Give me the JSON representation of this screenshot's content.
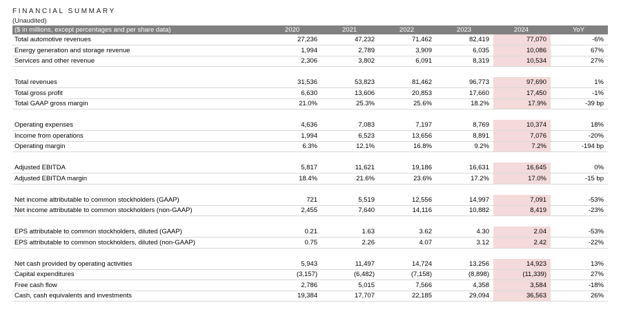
{
  "header": {
    "title": "FINANCIAL SUMMARY",
    "subtitle": "(Unaudited)"
  },
  "columns": [
    "($ in millions, except percentages and per share data)",
    "2020",
    "2021",
    "2022",
    "2023",
    "2024",
    "YoY"
  ],
  "groups": [
    {
      "rows": [
        {
          "label": "Total automotive revenues",
          "values": [
            "27,236",
            "47,232",
            "71,462",
            "82,419",
            "77,070",
            "-6%"
          ]
        },
        {
          "label": "Energy generation and storage revenue",
          "values": [
            "1,994",
            "2,789",
            "3,909",
            "6,035",
            "10,086",
            "67%"
          ]
        },
        {
          "label": "Services and other revenue",
          "values": [
            "2,306",
            "3,802",
            "6,091",
            "8,319",
            "10,534",
            "27%"
          ]
        }
      ]
    },
    {
      "rows": [
        {
          "label": "Total revenues",
          "values": [
            "31,536",
            "53,823",
            "81,462",
            "96,773",
            "97,690",
            "1%"
          ]
        },
        {
          "label": "Total gross profit",
          "values": [
            "6,630",
            "13,606",
            "20,853",
            "17,660",
            "17,450",
            "-1%"
          ]
        },
        {
          "label": "Total GAAP gross margin",
          "values": [
            "21.0%",
            "25.3%",
            "25.6%",
            "18.2%",
            "17.9%",
            "-39 bp"
          ]
        }
      ]
    },
    {
      "rows": [
        {
          "label": "Operating expenses",
          "values": [
            "4,636",
            "7,083",
            "7,197",
            "8,769",
            "10,374",
            "18%"
          ]
        },
        {
          "label": "Income from operations",
          "values": [
            "1,994",
            "6,523",
            "13,656",
            "8,891",
            "7,076",
            "-20%"
          ]
        },
        {
          "label": "Operating margin",
          "values": [
            "6.3%",
            "12.1%",
            "16.8%",
            "9.2%",
            "7.2%",
            "-194 bp"
          ]
        }
      ]
    },
    {
      "rows": [
        {
          "label": "Adjusted EBITDA",
          "values": [
            "5,817",
            "11,621",
            "19,186",
            "16,631",
            "16,645",
            "0%"
          ]
        },
        {
          "label": "Adjusted EBITDA margin",
          "values": [
            "18.4%",
            "21.6%",
            "23.6%",
            "17.2%",
            "17.0%",
            "-15 bp"
          ]
        }
      ]
    },
    {
      "rows": [
        {
          "label": "Net income attributable to common stockholders (GAAP)",
          "values": [
            "721",
            "5,519",
            "12,556",
            "14,997",
            "7,091",
            "-53%"
          ]
        },
        {
          "label": "Net income attributable to common stockholders (non-GAAP)",
          "values": [
            "2,455",
            "7,640",
            "14,116",
            "10,882",
            "8,419",
            "-23%"
          ]
        }
      ]
    },
    {
      "rows": [
        {
          "label": "EPS attributable to common stockholders, diluted (GAAP)",
          "values": [
            "0.21",
            "1.63",
            "3.62",
            "4.30",
            "2.04",
            "-53%"
          ]
        },
        {
          "label": "EPS attributable to common stockholders, diluted (non-GAAP)",
          "values": [
            "0.75",
            "2.26",
            "4.07",
            "3.12",
            "2.42",
            "-22%"
          ]
        }
      ]
    },
    {
      "rows": [
        {
          "label": "Net cash provided by operating activities",
          "values": [
            "5,943",
            "11,497",
            "14,724",
            "13,256",
            "14,923",
            "13%"
          ]
        },
        {
          "label": "Capital expenditures",
          "values": [
            "(3,157)",
            "(6,482)",
            "(7,158)",
            "(8,898)",
            "(11,339)",
            "27%"
          ]
        },
        {
          "label": "Free cash flow",
          "values": [
            "2,786",
            "5,015",
            "7,566",
            "4,358",
            "3,584",
            "-18%"
          ]
        },
        {
          "label": "Cash, cash equivalents and investments",
          "values": [
            "19,384",
            "17,707",
            "22,185",
            "29,094",
            "36,563",
            "26%"
          ]
        }
      ]
    }
  ],
  "colors": {
    "header_bg": "#808080",
    "highlight_column": "#f4dada"
  }
}
